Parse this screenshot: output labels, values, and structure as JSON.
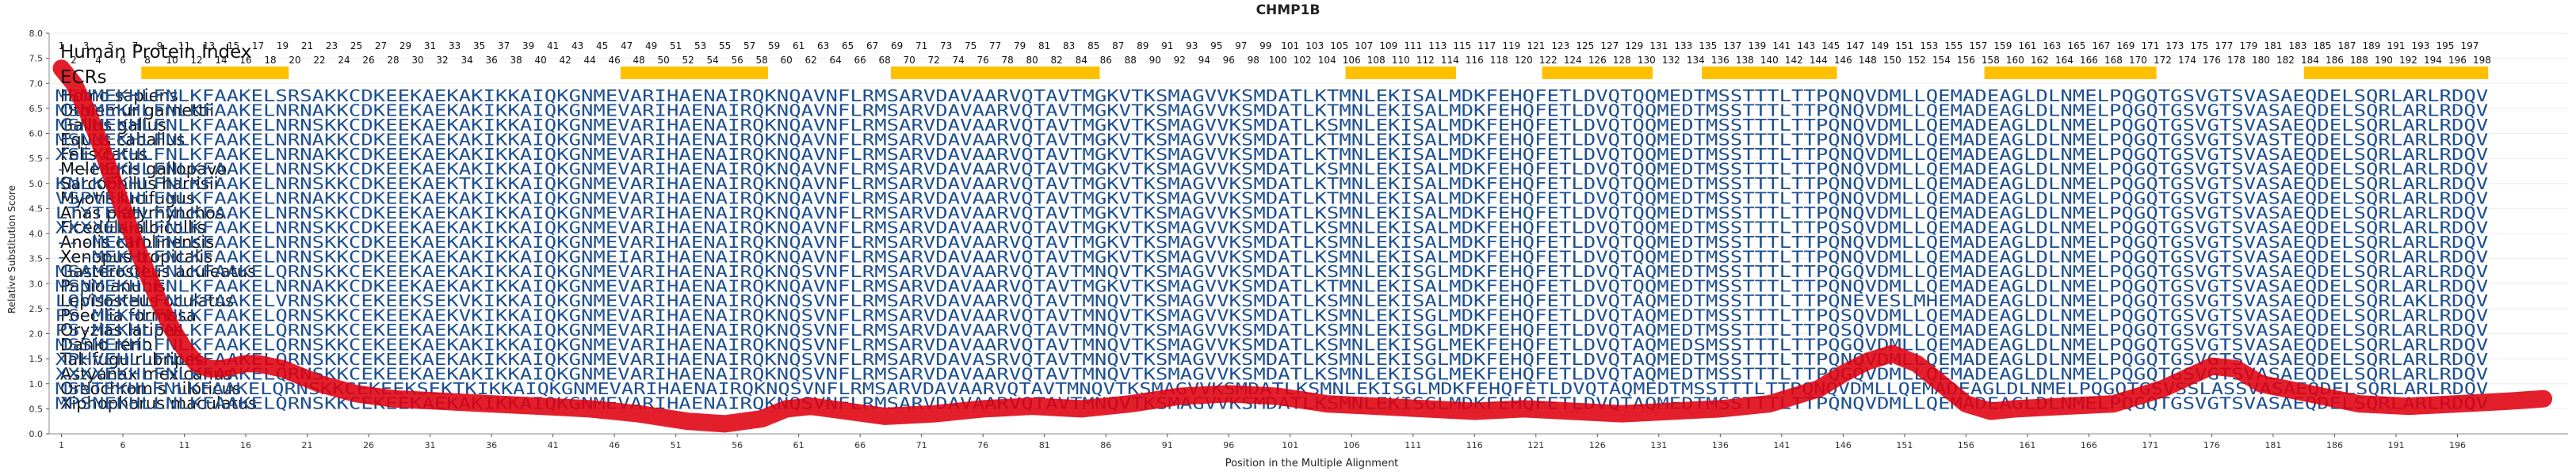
{
  "chart_data": {
    "type": "line",
    "title": "CHMP1B",
    "xlabel": "Position in the Multiple Alignment",
    "ylabel": "Relative Substitution Score",
    "xlim": [
      0,
      205
    ],
    "ylim": [
      0.0,
      8.0
    ],
    "yticks": [
      "0.0",
      "0.5",
      "1.0",
      "1.5",
      "2.0",
      "2.5",
      "3.0",
      "3.5",
      "4.0",
      "4.5",
      "5.0",
      "5.5",
      "6.0",
      "6.5",
      "7.0",
      "7.5",
      "8.0"
    ],
    "xtick_start": 1,
    "xtick_step": 5,
    "xtick_end": 196,
    "index_label": "Human Protein Index",
    "ecr_label": "ECRs",
    "top_index_start": 1,
    "top_index_end": 198,
    "ecr_color": "#FFC000",
    "ecrs": [
      [
        8,
        19
      ],
      [
        47,
        58
      ],
      [
        69,
        85
      ],
      [
        106,
        114
      ],
      [
        122,
        130
      ],
      [
        135,
        145
      ],
      [
        158,
        171
      ],
      [
        184,
        198
      ]
    ],
    "line_color": "#E0000F",
    "series": [
      {
        "x": [
          1,
          2,
          3,
          4,
          5,
          6,
          7,
          8,
          9,
          10,
          11,
          12,
          13,
          14,
          15,
          16,
          17,
          18,
          19,
          20,
          22,
          25,
          28,
          32,
          36,
          40,
          44,
          48,
          52,
          55,
          58,
          60,
          62,
          65,
          68,
          72,
          76,
          80,
          84,
          88,
          92,
          96,
          100,
          104,
          108,
          112,
          116,
          120,
          124,
          128,
          132,
          136,
          140,
          144,
          146,
          148,
          150,
          152,
          154,
          156,
          158,
          160,
          164,
          168,
          172,
          176,
          178,
          180,
          184,
          188,
          192,
          196,
          200,
          203
        ],
        "values": [
          7.3,
          7.0,
          6.5,
          5.9,
          5.2,
          4.5,
          3.8,
          3.2,
          2.6,
          2.1,
          1.7,
          1.4,
          1.3,
          1.3,
          1.35,
          1.4,
          1.4,
          1.35,
          1.3,
          1.2,
          1.0,
          0.8,
          0.7,
          0.65,
          0.6,
          0.55,
          0.5,
          0.4,
          0.25,
          0.2,
          0.3,
          0.5,
          0.55,
          0.45,
          0.35,
          0.4,
          0.5,
          0.55,
          0.5,
          0.6,
          0.75,
          0.8,
          0.75,
          0.6,
          0.55,
          0.5,
          0.45,
          0.5,
          0.45,
          0.4,
          0.45,
          0.5,
          0.6,
          0.9,
          1.2,
          1.45,
          1.6,
          1.4,
          1.0,
          0.6,
          0.45,
          0.5,
          0.55,
          0.6,
          0.9,
          1.35,
          1.3,
          1.0,
          0.8,
          0.6,
          0.55,
          0.6,
          0.65,
          0.7
        ]
      }
    ],
    "alignment": [
      {
        "species": "Homo sapiens",
        "seq": "MSNMEKHLFNLKFAAKELSRSAKKCDKEEKAEKAKIKKAIQKGNMEVARIHAENAIRQKNQAVNFLRMSARVDAVAARVQTAVTMGKVTKSMAGVVKSMDATLKTMNLEKISALMDKFEHQFETLDVQTQQMEDTMSSTTTLTTPQNQVDMLLQEMADEAGLDLNMELPQGQTGSVGTSVASAEQDELSQRLARLRDQV"
      },
      {
        "species": "Otolemur garnettii",
        "seq": "MSNMEKHLFNLKFAAKELNRNAKKCDKEEKAEKAKIKKAIQKGNMEVARIHAENAIRQKNQAVNFLRMSARVDAVAARVQTAVTMGKVTKSMAGVVKSMDATLKTMNLEKISALMDKFEHQFETLDVQTQQMEDTMSSTTTLTTPQNQVDMLLQEMADEAGLDLNMELPQGQTGSVGTSVASAEQDELSQRLARLRDQV"
      },
      {
        "species": "Gallus gallus",
        "seq": "MSNMEKHLFNLKFAAKELNRNSKKCDKEEKAEKAKIKKAIQKGNMEVARIHAENAIRQKNQAVNFLRMSARVDAVAARVQTAVTMGKVTKSMAGVVKSMDATLKSMNLEKISALMDKFEHQFETLDVQTQQMEDTMSSTTTLTTPQNQVDMLLQEMADEAGLDLNMELPQGQTGSVGTSVASAEQDELSQRLARLRDQV"
      },
      {
        "species": "Equus caballus",
        "seq": "MSNMEKHLFNLKFAAKELNRNAKKCDKEEKAEKAKIKKAIQKGNMEVARIHAENAIRQKNQAVNFLRMSARVDAVAARVQTAVTMGKVTKSMAGVVKSMDATLKTMNLEKISALMDKFEHQFETLDVQTQQMEDTMSSTTTLTTPQNQVDMLLQEMADEAGLDLNMELPQGQTGSVGTSVASTEQDELSQRLARLRDQV"
      },
      {
        "species": "Felis catus",
        "seq": "XSEXEKHLFNLKFAAKELNRNAKKCDKEEKAEKAKIKKAIQKGNMEVARIHAENAIRQKNQAVNFLRMSARVDAVAARVQTAVTMGKVTKSMAGVVKSMDATLKTMNLEKISALMDKFEHQFETLDVQTQQMEDTMSSTTTLTTPQNQVDMLLQEMADEAGLDLNMELPQGQTGSVGTSVASAEQDELSQRLARLRDQV"
      },
      {
        "species": "Meleagris gallopavo",
        "seq": "---MEKHLFNLKFAAKELNRNSKKCDKEEKAEKAKIKKAIQKGNMEVARIHAENAIRQKNQAVNFLRMSARVDAVAARVQTAVTMGKVTKSMAGVVKSMDATLKSMNLEKISALMDKFEHQFETLDVQTQQMEDTMSSTTTLTTPQNQVDMLLQEMADEAGLDLNMELPQGQTGSVGTSVASAEQDELSQRLARLRDQV"
      },
      {
        "species": "Sarcophilus harrisii",
        "seq": "KNLKEKHLFNLKFAAKELNRNSKKCDKEEKAEKTKIKKAIQKGNMEVARIHAENAIRQKNQAVNFLRMSARVDAVAARVQTAVTMGKVTKSMAGVVKSMDATLKTMNLEKISALMDKFEHQFETLDVQTQQMEDTMSSTTTLTTPQNQVDMLLQEMADEAGLDLNMELPQGQTGSVGTSVASAEQDELSQRLARLRDQV"
      },
      {
        "species": "Myotis lucifugus",
        "seq": "VSPVEKHLFNLKFAAKELNRNAKKCDKEEKAEKAKIKKAIQKGNMEVARIHAENAIRQKNQAVNFLRMSARVDAVAARVQTAVTMGKVTKSMAGVVKSMDATLKTMNLEKISALMDKFEHQFETLDVQTQQMEDTMSSTTTLTTPQNQVDMLLQEMADEAGLDLNMELPQGQTGSVGTSVASAEQDELSQRLARLRDQV"
      },
      {
        "species": "Anas platyrhynchos",
        "seq": "LTYTEKHLFNLKFAAKELNRNSKKCDKEEKAEKAKIKKAIQKGNMEVARIHAENAIRQKNQAVNFLRMSARVDAVAARVQTAVTMGKVTKSMAGVVKSMDATLKSMNLEKISALMDKFEHQFETLDVQTQQMEDTMSSTTTLTTPQNQVDMLLQEMADEAGLDLNMELPQGQTGSVGTSVASAEQDELSQRLARLRDQV"
      },
      {
        "species": "Ficedula albicollis",
        "seq": "XXXXEKHLFNLKFAAKELNRNSKKCDKEEKAEKAKIKKAIQKGNMEVARIHAENAIRQKNQAVNFLRMSARVDAVAARVQTAVTMGKVTKSMAGVVKSMDATLKSMNLEKISALMDKFEHQFETLDVQTQQMEDTMSSTTTLTTPQSQVDMLLQEMADEAGLDLNMELPQGQTGSVGTSVASAEQDELSQRLARLRDQV"
      },
      {
        "species": "Anolis carolinensis",
        "seq": "---MEKHLFNLKFAAKELNRNSKKCDKEEKAEKAKIKKAIQKGNMEVARIHAENAIRQKNQAVNFLRMSARVDAVAARVQTAVTMGKVTKSMAGVVKSMDATLKSMNLEKISALMDKFEHQFETLDVQTQQMEDTMSSTTTLTTPQNQVDMLLQEMADEAGLDLNMELPQGQTGSVGTSVASAEQDELSQRLARLRDQV"
      },
      {
        "species": "Xenopus tropicalis",
        "seq": "---MEKHLFNLKFAAKELNRNSKKCDKEEKAEKAKIKKAIQKGNMEIARIHAENAIRQKNQAVNFLRMSARVDAVAARVQTAVTMGKVTKSMAGVVKSMDATLKSMNLEKISALMDKFEHQFETLDVQTQQMEDTMSSTTTLTTPQNQVDMLLQEMADEAGLDLNMELPQGQTGSVGTSVASAEQDELSQRLARLRDQV"
      },
      {
        "species": "Gasterosteus aculeatus",
        "seq": "MSAMEKQLFNLKFAAKELQRNSKKCEKEEKAEKAKIKKAIQKGNMEVARIHAENAIRQKNQSVNFLRMSARVDAVAARVQTAVTMNQVTKSMAGVVKSMDATLKSMNLEKISGLMDKFEHQFETLDVQTAQMEDTMSSTTTLTTPQGQVDMLLQEMADEAGLDLNMELPQGQTGSVGTSVASAEQDELSQRLARLRDQV"
      },
      {
        "species": "Papio anubis",
        "seq": "MSNMEKHLFNLKFAAKELNRNAKKCDKEEKAEKAKIKKAIQKGNMEVARIHAENAIRQKNQAVNFLRMSARVDAVAARVQTAVTMGKVTKSMAGVVKSMDATLKTMNLEKISALMDKFEHQFETLDVQTQQMEDTMSSTTTLTTPQNQVDMLLQEMADEAGLDLNMELPQGQTGSVGTSVASAEQDELSQRLARLRDQV"
      },
      {
        "species": "Lepisosteus oculatus",
        "seq": "LQVMEKHLFNLKFAAKELVRNSKKCEKEEKSEKVKIKKAIQKGNMEVARIHAENAIRQKNQSVNFLRMSARVDAVAARVQTAVTMNQVTKSMAGVVKSMDATLKSMNLEKISALMDKFEHQFETLDVQTAQMEDTMSSTTTLTTPQNEVESLMHEMADEAGLDLNMELPQGQTGSVGTSVASAEQDELSQRLAKLRDQV"
      },
      {
        "species": "Poecilia formosa",
        "seq": "PS-MEKHLFNLKFAAKELQRNSKKCEKEEKAEKVKIKKAIQKGNMEVARIHAENAIRQKNQSVNFLRMSARVDAVAARVQTAVTMNQVTKSMAGVVKSMDATLKSMNLEKISGLMDKFEHQFETLDVQTAQMEDTMSSTTTLTTPQSQVDMLLQEMADEAGLDLNMELPQGQTGSVGTSVASAEQDELSQRLARLRDQV"
      },
      {
        "species": "Oryzias latipes",
        "seq": "PS-MEKHLFNLKFAAKELQRNSKKCEKEEKAEKAKIKKAIQKGNMEVARIHAENAIRQKNQSVNFLRMSARVDAVAARVQTAVTMNQVTKSMAGVVKSMDATLKSMNLEKISGLMDKFEHQFETLDVQTAQMEDTMSSTTTLTTPQSQVDMLLQEMADEAGLDLNMELPQGQTGSVGTSVASAEQDELSQRLARLRDQV"
      },
      {
        "species": "Danio rerio",
        "seq": "MSSMEKHLFNLKFAAKELQRNSKKCEKEEKAEKAKIKKAIQKGNMEVARIHAENAIRQKNQSVNFLRMSARVDAVAARVQTAVTMNQVTKSMAGVVKSMDATLKSMNLEKISGLMEKFEHQFETLDVQTAQMEDSMSSTTTLTTPQGQVDMLLQEMADEAGLDLNMELPQGQTGSVGTSVASAEQDELSQRLARLRDQV"
      },
      {
        "species": "Takifugu rubripes",
        "seq": "XPHVEHLLFNLKFAAKELQRNSKKCEKEEKAEKAKIKKAIQKGNMEVARIHAENAIRQKNQSVNFLRMSARVDAVASRVQTAVTMNQVTKSMAGVVKSMDATLKSMNLEKISGLMDKFEHQFETLDVQTAQMEDTMSSTTTLTTPQNQVDMLLQEMADEAGLDLNMELPQGQTGSVGTSVASAEQDELSQRLARLRDQV"
      },
      {
        "species": "Astyanax mexicanus",
        "seq": "XXXXEKHLFNLKFAAKELQRNSKKCEKEEKAEKAKIKKAIQKGNMEVARIHAENAIRQKNQSVNFLRMSARVDAVAARVQTAVTMNQVTKSMAGVVKSMDATLKSMNLEKISGLMEKFEHQFETLDVQTAQMEDTMSSTTTLTTPQGQVDMLLQEMADEAGLDLNMELPQGQTGSVGTSVASAEQDELSQRLARLRDQV"
      },
      {
        "species": "Oreochromis niloticus",
        "seq": "MSNTEKHLFNLKFAAKELQRNSKKCEKEEKSEKTKIKKAIQKGNMEVARIHAENAIRQKNQSVNFLRMSARVDAVAARVQTAVTMNQVTKSMAGVVKSMDATLKSMNLEKISGLMDKFEHQFETLDVQTAQMEDTMSSTTTLTTPQNQVDMLLQEMADEAGLDLNMELPQGQTGSVSSLASSVASAEQDELSQRLARLRDQV"
      },
      {
        "species": "Xiphophorus maculatus",
        "seq": "MPSNEKHLLNLKFAAKELQRNSKKCEKEEKAEKAKIKKAIQKGNMEVARIHAENAIRQKNQSVNFLRMSARVDAVAARVQTAVTMNQVTKSMAGVVKSMDATLKSMNLEKISGLMDKFEHQFETLDVQTAQMEDTMSSTTTLTTPQNQVDMLLQEMADEAGLDLNMELPQGQTGSVGTSVASAEQDELSQRLARLRDQV"
      }
    ]
  }
}
